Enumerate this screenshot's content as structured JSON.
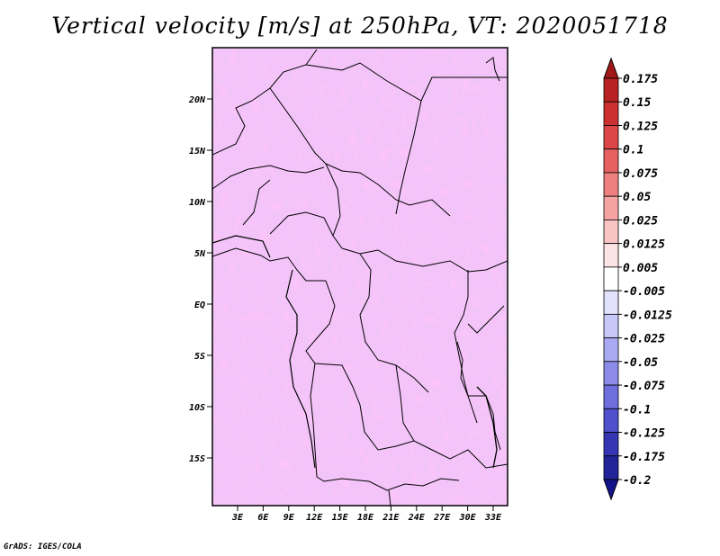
{
  "title": "Vertical velocity [m/s] at 250hPa, VT: 2020051718",
  "credit": "GrADS: IGES/COLA",
  "map": {
    "lat_labels": [
      "20N",
      "15N",
      "10N",
      "5N",
      "EQ",
      "5S",
      "10S",
      "15S"
    ],
    "lon_labels": [
      "3E",
      "6E",
      "9E",
      "12E",
      "15E",
      "18E",
      "21E",
      "24E",
      "27E",
      "30E",
      "33E"
    ]
  },
  "colorbar": {
    "labels": [
      "0.175",
      "0.15",
      "0.125",
      "0.1",
      "0.075",
      "0.05",
      "0.025",
      "0.0125",
      "0.005",
      "-0.005",
      "-0.0125",
      "-0.025",
      "-0.05",
      "-0.075",
      "-0.1",
      "-0.125",
      "-0.175",
      "-0.2"
    ],
    "colors": [
      "#a01818",
      "#b82222",
      "#cc3030",
      "#dc4646",
      "#e66262",
      "#ee8080",
      "#f4a2a2",
      "#f9c4c4",
      "#fde4e4",
      "#ffffff",
      "#e2e2fc",
      "#c8c8f8",
      "#aaaaf2",
      "#8c8ce8",
      "#6e6ede",
      "#5050cc",
      "#3636b4",
      "#24249a",
      "#14148a"
    ]
  }
}
